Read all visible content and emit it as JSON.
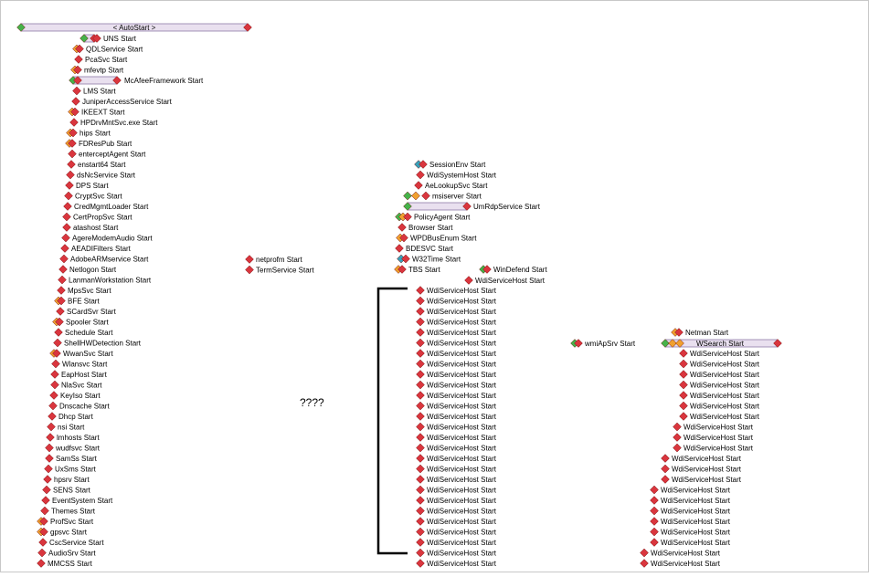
{
  "top_bar": {
    "label": "< AutoStart >"
  },
  "annotation": "????",
  "colors": {
    "diamond_red": "#d9363e",
    "diamond_green": "#46b24a",
    "diamond_orange": "#f0a030",
    "diamond_teal": "#3aa0b8",
    "bar_fill": "#e9e0ef",
    "bar_border": "#8e7aa8",
    "bracket": "#000000"
  },
  "diagram": {
    "col1": [
      {
        "label": "UNS Start",
        "kind": "bar"
      },
      {
        "label": "QDLService Start",
        "kind": "orange"
      },
      {
        "label": "PcaSvc Start",
        "kind": "plain"
      },
      {
        "label": "mfevtp Start",
        "kind": "orange"
      },
      {
        "label": "McAfeeFramework Start",
        "kind": "bar"
      },
      {
        "label": "LMS Start",
        "kind": "plain"
      },
      {
        "label": "JuniperAccessService Start",
        "kind": "plain"
      },
      {
        "label": "IKEEXT Start",
        "kind": "orange"
      },
      {
        "label": "HPDrvMntSvc.exe Start",
        "kind": "plain"
      },
      {
        "label": "hips Start",
        "kind": "orange"
      },
      {
        "label": "FDResPub Start",
        "kind": "orange"
      },
      {
        "label": "enterceptAgent Start",
        "kind": "plain"
      },
      {
        "label": "enstart64 Start",
        "kind": "plain"
      },
      {
        "label": "dsNcService Start",
        "kind": "plain"
      },
      {
        "label": "DPS Start",
        "kind": "plain"
      },
      {
        "label": "CryptSvc Start",
        "kind": "plain"
      },
      {
        "label": "CredMgmtLoader Start",
        "kind": "plain"
      },
      {
        "label": "CertPropSvc Start",
        "kind": "plain"
      },
      {
        "label": "atashost Start",
        "kind": "plain"
      },
      {
        "label": "AgereModemAudio Start",
        "kind": "plain"
      },
      {
        "label": "AEADIFilters Start",
        "kind": "plain"
      },
      {
        "label": "AdobeARMservice Start",
        "kind": "plain"
      },
      {
        "label": "Netlogon Start",
        "kind": "plain"
      },
      {
        "label": "LanmanWorkstation Start",
        "kind": "plain"
      },
      {
        "label": "MpsSvc Start",
        "kind": "plain"
      },
      {
        "label": "BFE Start",
        "kind": "orange"
      },
      {
        "label": "SCardSvr Start",
        "kind": "plain"
      },
      {
        "label": "Spooler Start",
        "kind": "orange"
      },
      {
        "label": "Schedule Start",
        "kind": "plain"
      },
      {
        "label": "ShellHWDetection Start",
        "kind": "plain"
      },
      {
        "label": "WwanSvc Start",
        "kind": "orange"
      },
      {
        "label": "Wlansvc Start",
        "kind": "plain"
      },
      {
        "label": "EapHost Start",
        "kind": "plain"
      },
      {
        "label": "NlaSvc Start",
        "kind": "plain"
      },
      {
        "label": "KeyIso Start",
        "kind": "plain"
      },
      {
        "label": "Dnscache Start",
        "kind": "plain"
      },
      {
        "label": "Dhcp Start",
        "kind": "plain"
      },
      {
        "label": "nsi Start",
        "kind": "plain"
      },
      {
        "label": "lmhosts Start",
        "kind": "plain"
      },
      {
        "label": "wudfsvc Start",
        "kind": "plain"
      },
      {
        "label": "SamSs Start",
        "kind": "plain"
      },
      {
        "label": "UxSms Start",
        "kind": "plain"
      },
      {
        "label": "hpsrv Start",
        "kind": "plain"
      },
      {
        "label": "SENS Start",
        "kind": "plain"
      },
      {
        "label": "EventSystem Start",
        "kind": "plain"
      },
      {
        "label": "Themes Start",
        "kind": "plain"
      },
      {
        "label": "ProfSvc Start",
        "kind": "orange"
      },
      {
        "label": "gpsvc Start",
        "kind": "orange"
      },
      {
        "label": "CscService Start",
        "kind": "plain"
      },
      {
        "label": "AudioSrv Start",
        "kind": "plain"
      },
      {
        "label": "MMCSS Start",
        "kind": "plain"
      }
    ],
    "col2": [
      {
        "label": "netprofm Start"
      },
      {
        "label": "TermService Start"
      }
    ],
    "col3": [
      {
        "label": "SessionEnv Start",
        "kind": "teal"
      },
      {
        "label": "WdiSystemHost Start",
        "kind": "plain"
      },
      {
        "label": "AeLookupSvc Start",
        "kind": "plain"
      },
      {
        "label": "msiserver Start",
        "kind": "green2"
      },
      {
        "label": "UmRdpService Start",
        "kind": "bar"
      },
      {
        "label": "PolicyAgent Start",
        "kind": "greenorange"
      },
      {
        "label": "Browser Start",
        "kind": "plain"
      },
      {
        "label": "WPDBusEnum Start",
        "kind": "orange"
      },
      {
        "label": "BDESVC Start",
        "kind": "plain"
      },
      {
        "label": "W32Time Start",
        "kind": "teal"
      },
      {
        "label": "TBS Start",
        "kind": "orange"
      }
    ],
    "windefend": {
      "label": "WinDefend Start"
    },
    "wdi_first": {
      "label": "WdiServiceHost Start"
    },
    "wdi_column": [
      "WdiServiceHost Start",
      "WdiServiceHost Start",
      "WdiServiceHost Start",
      "WdiServiceHost Start",
      "WdiServiceHost Start",
      "WdiServiceHost Start",
      "WdiServiceHost Start",
      "WdiServiceHost Start",
      "WdiServiceHost Start",
      "WdiServiceHost Start",
      "WdiServiceHost Start",
      "WdiServiceHost Start",
      "WdiServiceHost Start",
      "WdiServiceHost Start",
      "WdiServiceHost Start",
      "WdiServiceHost Start",
      "WdiServiceHost Start",
      "WdiServiceHost Start",
      "WdiServiceHost Start",
      "WdiServiceHost Start",
      "WdiServiceHost Start",
      "WdiServiceHost Start",
      "WdiServiceHost Start",
      "WdiServiceHost Start",
      "WdiServiceHost Start",
      "WdiServiceHost Start",
      "WdiServiceHost Start"
    ],
    "wmiapsrv": {
      "label": "wmiApSrv Start"
    },
    "netman": {
      "label": "Netman Start"
    },
    "wsearch": {
      "label": "WSearch Start"
    },
    "wsearch_children": [
      "WdiServiceHost Start",
      "WdiServiceHost Start",
      "WdiServiceHost Start",
      "WdiServiceHost Start",
      "WdiServiceHost Start",
      "WdiServiceHost Start",
      "WdiServiceHost Start",
      "WdiServiceHost Start",
      "WdiServiceHost Start",
      "WdiServiceHost Start",
      "WdiServiceHost Start",
      "WdiServiceHost Start",
      "WdiServiceHost Start",
      "WdiServiceHost Start",
      "WdiServiceHost Start",
      "WdiServiceHost Start",
      "WdiServiceHost Start",
      "WdiServiceHost Start",
      "WdiServiceHost Start",
      "WdiServiceHost Start",
      "WdiServiceHost Start"
    ]
  }
}
